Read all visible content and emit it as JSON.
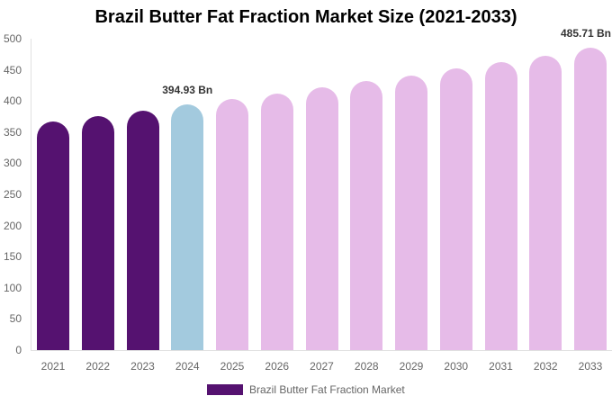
{
  "chart_data": {
    "type": "bar",
    "title": "Brazil Butter Fat Fraction Market Size (2021-2033)",
    "xlabel": "",
    "ylabel": "",
    "ylim": [
      0,
      500
    ],
    "yticks": [
      0,
      50,
      100,
      150,
      200,
      250,
      300,
      350,
      400,
      450,
      500
    ],
    "grid": false,
    "legend_position": "bottom",
    "categories": [
      "2021",
      "2022",
      "2023",
      "2024",
      "2025",
      "2026",
      "2027",
      "2028",
      "2029",
      "2030",
      "2031",
      "2032",
      "2033"
    ],
    "series": [
      {
        "name": "Brazil Butter Fat Fraction Market",
        "values": [
          367,
          376,
          384,
          394.93,
          403,
          412,
          422,
          432,
          441,
          452,
          462,
          473,
          485.71
        ]
      }
    ],
    "bar_colors": [
      "#551270",
      "#551270",
      "#551270",
      "#a3cade",
      "#e6bbe8",
      "#e6bbe8",
      "#e6bbe8",
      "#e6bbe8",
      "#e6bbe8",
      "#e6bbe8",
      "#e6bbe8",
      "#e6bbe8",
      "#e6bbe8"
    ],
    "annotations": [
      {
        "category": "2024",
        "text": "394.93 Bn"
      },
      {
        "category": "2033",
        "text": "485.71 Bn"
      }
    ]
  },
  "legend": {
    "label": "Brazil Butter Fat Fraction Market",
    "color": "#551270"
  }
}
